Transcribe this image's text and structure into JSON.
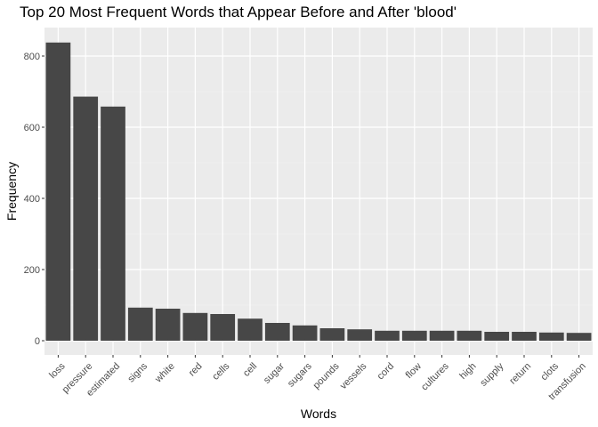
{
  "chart_data": {
    "type": "bar",
    "title": "Top 20 Most Frequent Words that Appear Before and After 'blood'",
    "xlabel": "Words",
    "ylabel": "Frequency",
    "ylim": [
      -40,
      880
    ],
    "yticks": [
      0,
      200,
      400,
      600,
      800
    ],
    "grid": true,
    "categories": [
      "loss",
      "pressure",
      "estimated",
      "signs",
      "white",
      "red",
      "cells",
      "cell",
      "sugar",
      "sugars",
      "pounds",
      "vessels",
      "cord",
      "flow",
      "cultures",
      "high",
      "supply",
      "return",
      "clots",
      "transfusion"
    ],
    "values": [
      838,
      686,
      658,
      93,
      90,
      78,
      75,
      62,
      50,
      43,
      35,
      32,
      28,
      28,
      28,
      28,
      25,
      25,
      23,
      22
    ],
    "colors": {
      "bar": "#474747",
      "panel": "#ebebeb",
      "grid_major": "#ffffff"
    }
  }
}
